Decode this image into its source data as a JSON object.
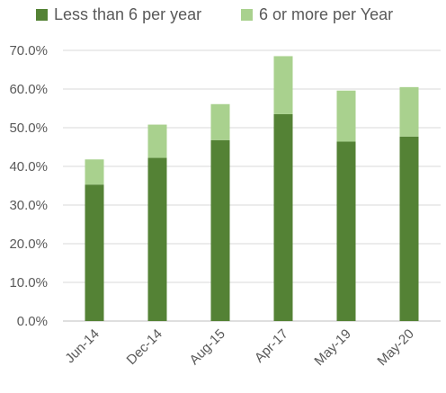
{
  "chart_data": {
    "type": "bar",
    "stacked": true,
    "categories": [
      "Jun-14",
      "Dec-14",
      "Aug-15",
      "Apr-17",
      "May-19",
      "May-20"
    ],
    "series": [
      {
        "name": "Less than 6 per year",
        "color": "#548235",
        "values": [
          35.3,
          42.2,
          46.8,
          53.5,
          46.4,
          47.7
        ]
      },
      {
        "name": "6 or more per Year",
        "color": "#a9d18e",
        "values": [
          6.5,
          8.6,
          9.3,
          15.0,
          13.2,
          12.8
        ]
      }
    ],
    "y_ticks": [
      "0.0%",
      "10.0%",
      "20.0%",
      "30.0%",
      "40.0%",
      "50.0%",
      "60.0%",
      "70.0%"
    ],
    "ylim": [
      0,
      70
    ],
    "grid": true,
    "legend_position": "top",
    "title": "",
    "xlabel": "",
    "ylabel": ""
  }
}
